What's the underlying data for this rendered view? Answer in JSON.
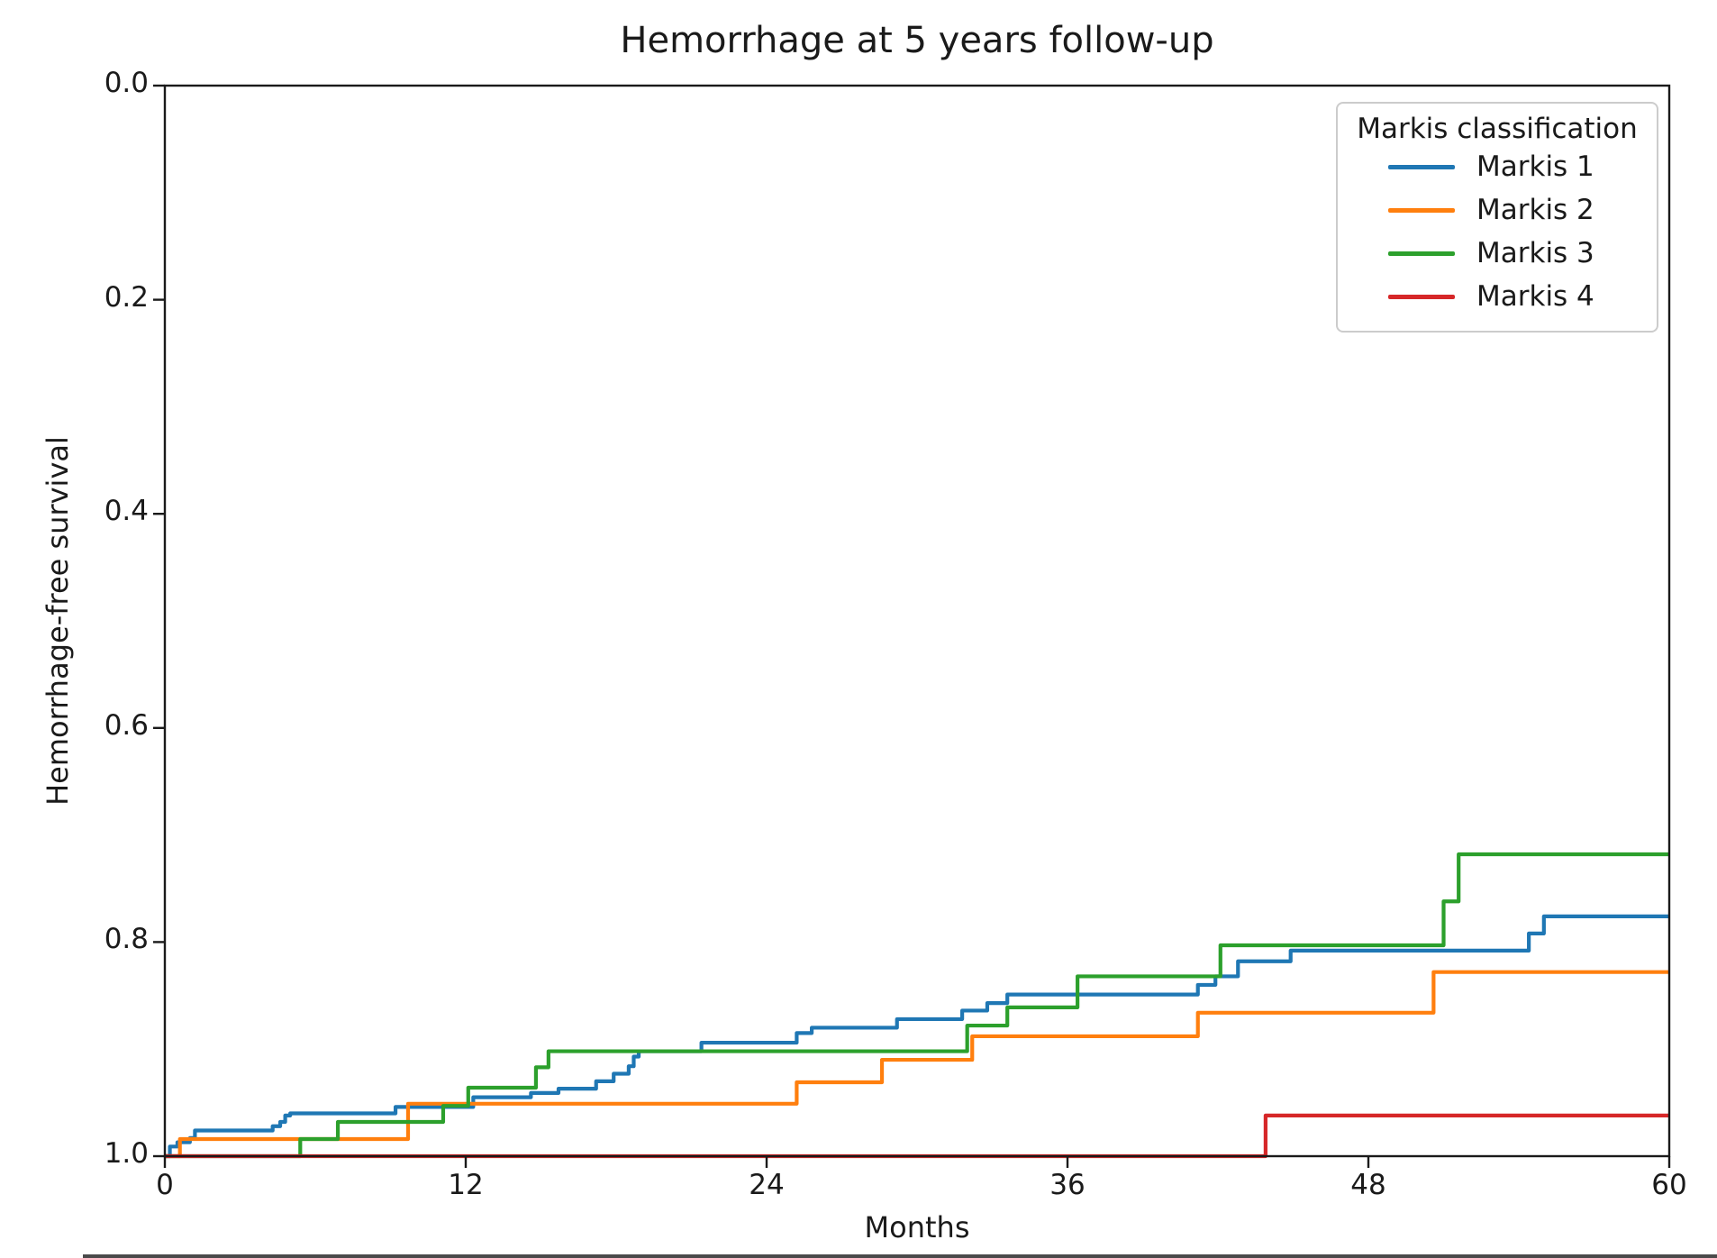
{
  "chart_data": {
    "type": "line",
    "subtype": "kaplan-meier-step",
    "title": "Hemorrhage at 5 years follow-up",
    "xlabel": "Months",
    "ylabel": "Hemorrhage-free survival",
    "xlim": [
      0,
      60
    ],
    "ylim": [
      0.0,
      1.0
    ],
    "y_axis_inverted": true,
    "grid": false,
    "xticks": [
      0,
      12,
      24,
      36,
      48,
      60
    ],
    "yticks": [
      "0.0",
      "0.2",
      "0.4",
      "0.6",
      "0.8",
      "1.0"
    ],
    "legend": {
      "title": "Markis classification",
      "position": "upper right"
    },
    "frame_color": "#1a1a1a",
    "series": [
      {
        "name": "Markis 1",
        "color": "#1f77b4",
        "points": [
          [
            0,
            1.0
          ],
          [
            0.2,
            0.991
          ],
          [
            0.5,
            0.987
          ],
          [
            1.0,
            0.983
          ],
          [
            1.2,
            0.976
          ],
          [
            4.3,
            0.972
          ],
          [
            4.6,
            0.968
          ],
          [
            4.8,
            0.962
          ],
          [
            5.0,
            0.96
          ],
          [
            9.2,
            0.954
          ],
          [
            12.3,
            0.945
          ],
          [
            14.6,
            0.941
          ],
          [
            15.7,
            0.937
          ],
          [
            17.2,
            0.93
          ],
          [
            17.9,
            0.923
          ],
          [
            18.5,
            0.916
          ],
          [
            18.7,
            0.907
          ],
          [
            18.9,
            0.902
          ],
          [
            21.4,
            0.894
          ],
          [
            25.2,
            0.885
          ],
          [
            25.8,
            0.88
          ],
          [
            29.2,
            0.872
          ],
          [
            31.8,
            0.864
          ],
          [
            32.8,
            0.857
          ],
          [
            33.6,
            0.849
          ],
          [
            41.2,
            0.84
          ],
          [
            41.9,
            0.832
          ],
          [
            42.8,
            0.818
          ],
          [
            44.9,
            0.808
          ],
          [
            54.4,
            0.792
          ],
          [
            55.0,
            0.776
          ],
          [
            60,
            0.776
          ]
        ]
      },
      {
        "name": "Markis 2",
        "color": "#ff7f0e",
        "points": [
          [
            0,
            1.0
          ],
          [
            0.6,
            0.984
          ],
          [
            9.7,
            0.951
          ],
          [
            25.2,
            0.931
          ],
          [
            28.6,
            0.91
          ],
          [
            32.2,
            0.888
          ],
          [
            41.2,
            0.866
          ],
          [
            50.6,
            0.828
          ],
          [
            60,
            0.828
          ]
        ]
      },
      {
        "name": "Markis 3",
        "color": "#2ca02c",
        "points": [
          [
            0,
            1.0
          ],
          [
            5.4,
            0.984
          ],
          [
            6.9,
            0.968
          ],
          [
            11.1,
            0.953
          ],
          [
            12.1,
            0.936
          ],
          [
            14.8,
            0.917
          ],
          [
            15.3,
            0.902
          ],
          [
            32.0,
            0.878
          ],
          [
            33.6,
            0.861
          ],
          [
            36.4,
            0.832
          ],
          [
            42.1,
            0.803
          ],
          [
            51.0,
            0.762
          ],
          [
            51.6,
            0.718
          ],
          [
            60,
            0.718
          ]
        ]
      },
      {
        "name": "Markis 4",
        "color": "#d62728",
        "points": [
          [
            0,
            1.0
          ],
          [
            43.9,
            0.962
          ],
          [
            60,
            0.962
          ]
        ]
      }
    ]
  }
}
